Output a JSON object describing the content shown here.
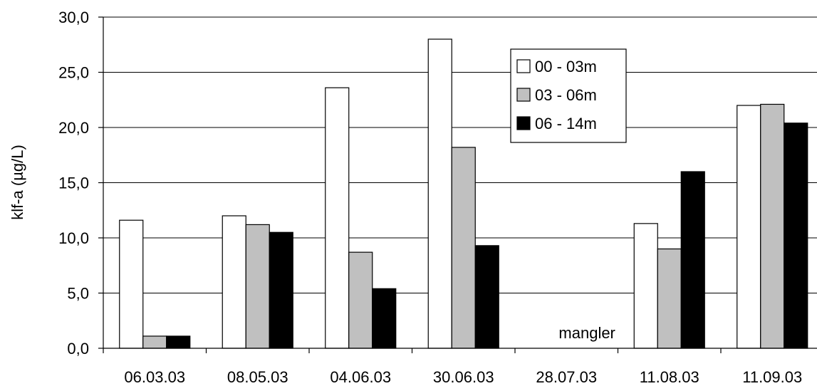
{
  "chart_data": {
    "type": "bar",
    "title": "",
    "xlabel": "",
    "ylabel": "klf-a (µg/L)",
    "ylim": [
      0,
      30
    ],
    "yticks": [
      "0,0",
      "5,0",
      "10,0",
      "15,0",
      "20,0",
      "25,0",
      "30,0"
    ],
    "categories": [
      "06.03.03",
      "08.05.03",
      "04.06.03",
      "30.06.03",
      "28.07.03",
      "11.08.03",
      "11.09.03"
    ],
    "series": [
      {
        "name": "00 - 03m",
        "color": "#ffffff",
        "values": [
          11.6,
          12.0,
          23.6,
          28.0,
          null,
          11.3,
          22.0
        ]
      },
      {
        "name": "03 - 06m",
        "color": "#c0c0c0",
        "values": [
          1.1,
          11.2,
          8.7,
          18.2,
          null,
          9.0,
          22.1
        ]
      },
      {
        "name": "06 - 14m",
        "color": "#000000",
        "values": [
          1.1,
          10.5,
          5.4,
          9.3,
          null,
          16.0,
          20.4
        ]
      }
    ],
    "annotations": [
      {
        "category": "28.07.03",
        "text": "mangler"
      }
    ],
    "grid": true,
    "legend_position": "top-right"
  }
}
